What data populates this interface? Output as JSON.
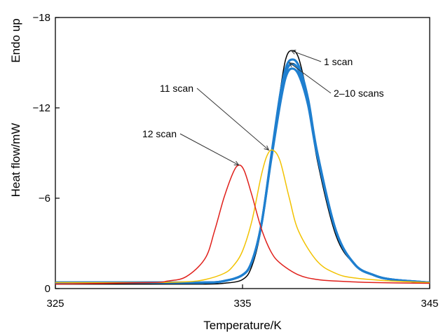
{
  "chart_data": {
    "type": "line",
    "title": "",
    "xlabel": "Temperature/K",
    "ylabel": "Heat flow/mW",
    "ylabel_secondary": "Endo up",
    "xlim": [
      325,
      345
    ],
    "ylim": [
      0,
      -18
    ],
    "y_inverted": true,
    "grid": false,
    "x_ticks": [
      325,
      335,
      345
    ],
    "x_tick_labels": [
      "325",
      "335",
      "345"
    ],
    "y_ticks": [
      0,
      -6,
      -12,
      -18
    ],
    "y_tick_labels": [
      "0",
      "−6",
      "−12",
      "−18"
    ],
    "colors": {
      "scan_1": "#000000",
      "scans_2_10": "#1f7fcf",
      "scan_11": "#f2c200",
      "scan_12": "#e0201b",
      "annotation": "#333333"
    },
    "series": [
      {
        "color": "#000000",
        "x": [
          325,
          330,
          333,
          334,
          335,
          335.5,
          336,
          336.5,
          337,
          337.3,
          337.6,
          338,
          338.5,
          339,
          340,
          341,
          342,
          343,
          345
        ],
        "y": [
          -0.3,
          -0.3,
          -0.3,
          -0.35,
          -0.6,
          -1.5,
          -4.0,
          -8.5,
          -13.0,
          -15.2,
          -15.8,
          -15.3,
          -12.5,
          -8.5,
          -3.5,
          -1.6,
          -0.9,
          -0.6,
          -0.4
        ]
      },
      {
        "color": "#1f7fcf",
        "x": [
          325,
          330,
          333,
          334,
          335,
          335.5,
          336,
          336.5,
          337,
          337.3,
          337.6,
          338,
          338.5,
          339,
          340,
          341,
          342,
          343,
          345
        ],
        "y": [
          -0.4,
          -0.4,
          -0.4,
          -0.5,
          -0.9,
          -1.8,
          -4.2,
          -8.5,
          -12.8,
          -14.6,
          -15.2,
          -14.8,
          -12.6,
          -9.0,
          -3.8,
          -1.6,
          -0.9,
          -0.6,
          -0.4
        ]
      },
      {
        "color": "#1f7fcf",
        "x": [
          325,
          330,
          333,
          334,
          335,
          335.5,
          336,
          336.5,
          337,
          337.3,
          337.6,
          338,
          338.5,
          339,
          340,
          341,
          342,
          343,
          345
        ],
        "y": [
          -0.4,
          -0.4,
          -0.4,
          -0.5,
          -0.9,
          -1.8,
          -4.2,
          -8.4,
          -12.5,
          -14.3,
          -14.9,
          -14.5,
          -12.4,
          -8.9,
          -3.8,
          -1.6,
          -0.9,
          -0.6,
          -0.4
        ]
      },
      {
        "color": "#1f7fcf",
        "x": [
          325,
          330,
          333,
          334,
          335,
          335.5,
          336,
          336.5,
          337,
          337.3,
          337.6,
          338,
          338.5,
          339,
          340,
          341,
          342,
          343,
          345
        ],
        "y": [
          -0.4,
          -0.4,
          -0.4,
          -0.5,
          -0.9,
          -1.8,
          -4.2,
          -8.3,
          -12.2,
          -14.0,
          -14.6,
          -14.2,
          -12.2,
          -8.8,
          -3.8,
          -1.6,
          -0.9,
          -0.6,
          -0.4
        ]
      },
      {
        "color": "#f2c200",
        "x": [
          325,
          330,
          332,
          333,
          334,
          334.5,
          335,
          335.5,
          336,
          336.3,
          336.6,
          337,
          337.5,
          338,
          339,
          340,
          341,
          343,
          345
        ],
        "y": [
          -0.4,
          -0.4,
          -0.45,
          -0.6,
          -1.0,
          -1.5,
          -2.5,
          -4.5,
          -7.5,
          -8.8,
          -9.2,
          -8.5,
          -6.0,
          -3.8,
          -1.8,
          -1.0,
          -0.7,
          -0.5,
          -0.4
        ]
      },
      {
        "color": "#e0201b",
        "x": [
          325,
          330,
          331,
          332,
          333,
          333.5,
          334,
          334.5,
          334.8,
          335.1,
          335.5,
          336,
          336.5,
          337,
          338,
          339,
          340,
          342,
          345
        ],
        "y": [
          -0.3,
          -0.4,
          -0.5,
          -0.8,
          -2.0,
          -3.8,
          -6.0,
          -7.7,
          -8.2,
          -7.8,
          -6.2,
          -4.0,
          -2.5,
          -1.7,
          -0.9,
          -0.6,
          -0.5,
          -0.4,
          -0.35
        ]
      }
    ],
    "annotations": [
      {
        "text": "1 scan",
        "target": [
          337.6,
          -15.8
        ]
      },
      {
        "text": "2–10 scans",
        "target": [
          337.5,
          -15.0
        ]
      },
      {
        "text": "11 scan",
        "target": [
          336.4,
          -9.2
        ]
      },
      {
        "text": "12 scan",
        "target": [
          334.8,
          -8.2
        ]
      }
    ]
  }
}
